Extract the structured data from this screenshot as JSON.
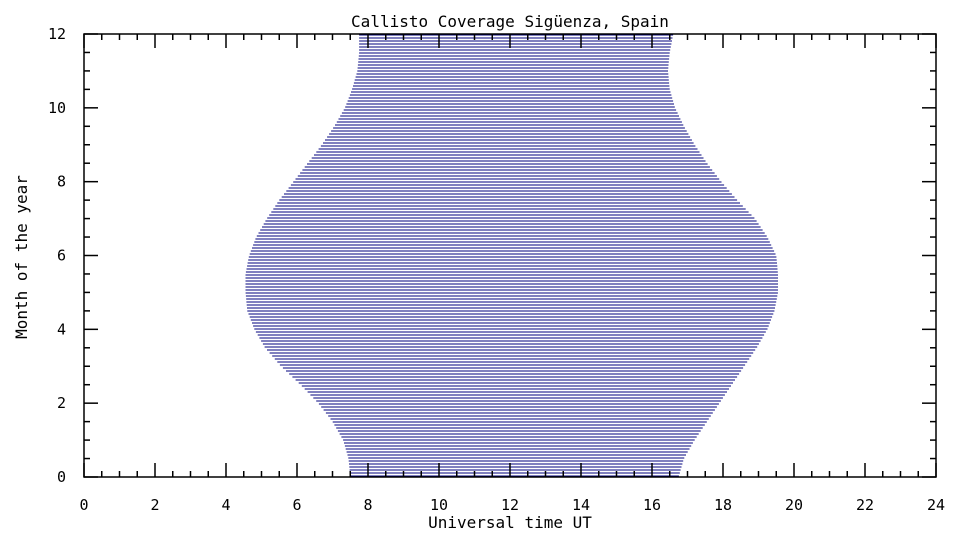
{
  "chart_data": {
    "type": "area",
    "title": "Callisto Coverage Sigüenza, Spain",
    "xlabel": "Universal time UT",
    "ylabel": "Month of the year",
    "xlim": [
      0,
      24
    ],
    "ylim": [
      0,
      12
    ],
    "x_ticks": [
      0,
      2,
      4,
      6,
      8,
      10,
      12,
      14,
      16,
      18,
      20,
      22,
      24
    ],
    "y_ticks": [
      0,
      2,
      4,
      6,
      8,
      10,
      12
    ],
    "x_tick_labels": [
      "0",
      "2",
      "4",
      "6",
      "8",
      "10",
      "12",
      "14",
      "16",
      "18",
      "20",
      "22",
      "24"
    ],
    "y_tick_labels": [
      "0",
      "2",
      "4",
      "6",
      "8",
      "10",
      "12"
    ],
    "fill_style": "horizontal-lines",
    "fill_color": "#00007f",
    "grid": false,
    "series": [
      {
        "month": [
          0,
          0.5,
          1,
          1.5,
          2,
          2.5,
          3,
          3.5,
          4,
          4.5,
          5,
          5.5,
          6,
          6.5,
          7,
          7.5,
          8,
          8.5,
          9,
          9.5,
          10,
          10.5,
          11,
          11.5,
          12
        ],
        "start_ut": [
          7.5,
          7.45,
          7.3,
          7.0,
          6.6,
          6.1,
          5.55,
          5.1,
          4.8,
          4.6,
          4.55,
          4.55,
          4.65,
          4.85,
          5.15,
          5.5,
          5.9,
          6.3,
          6.7,
          7.05,
          7.35,
          7.55,
          7.7,
          7.75,
          7.75
        ],
        "end_ut": [
          16.75,
          16.9,
          17.2,
          17.55,
          17.9,
          18.25,
          18.6,
          18.95,
          19.25,
          19.45,
          19.55,
          19.55,
          19.5,
          19.25,
          18.9,
          18.4,
          17.95,
          17.55,
          17.2,
          16.9,
          16.65,
          16.5,
          16.45,
          16.5,
          16.6
        ]
      }
    ]
  }
}
